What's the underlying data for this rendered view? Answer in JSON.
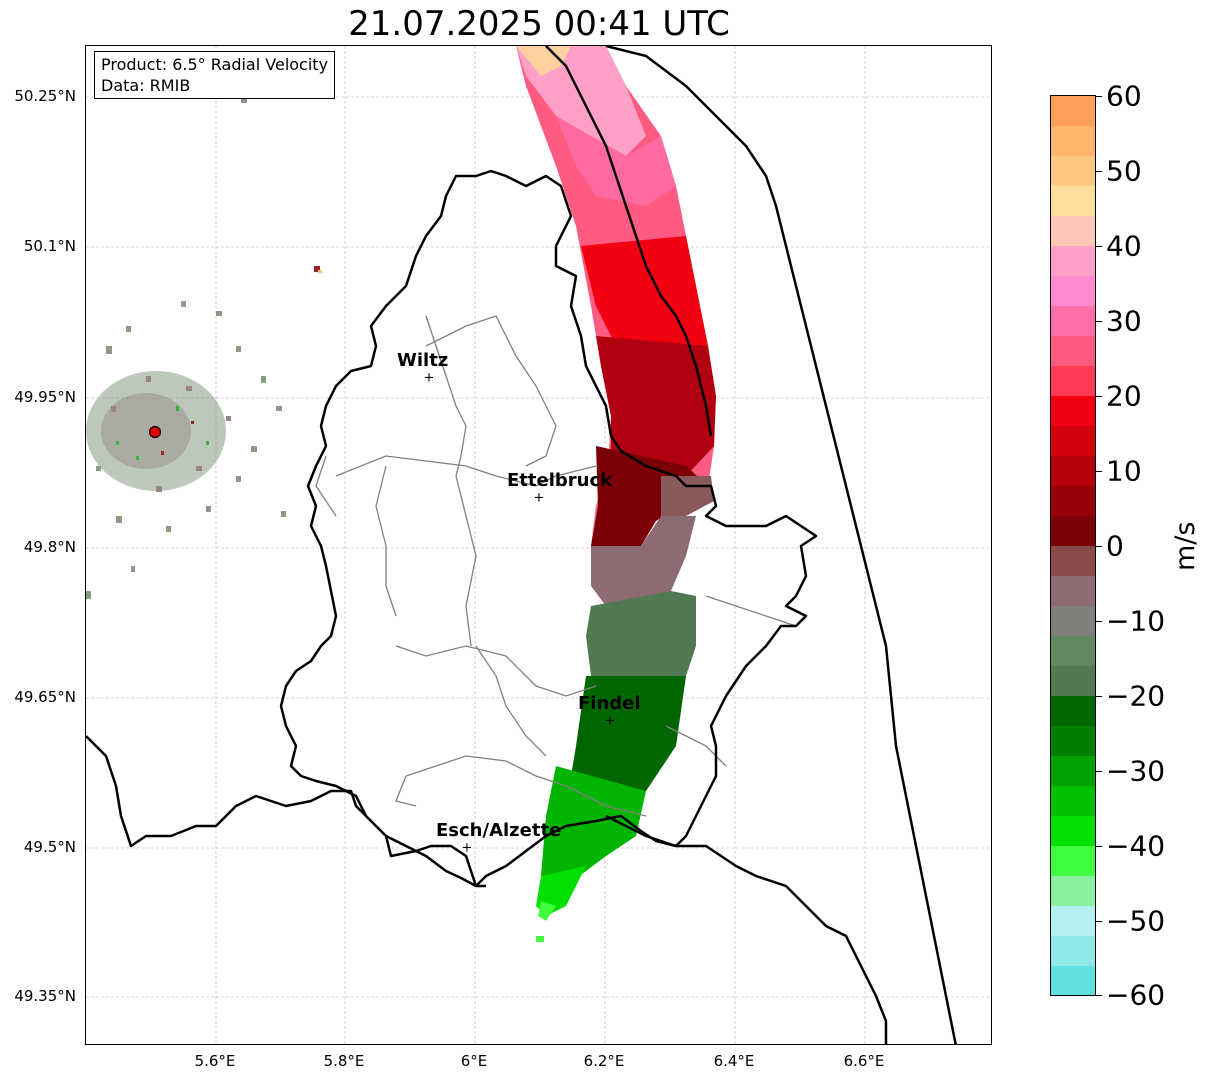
{
  "title": "21.07.2025 00:41 UTC",
  "info": {
    "product": "Product: 6.5° Radial Velocity",
    "data_source": "Data: RMIB"
  },
  "axes": {
    "lat_labels": [
      "50.25°N",
      "50.1°N",
      "49.95°N",
      "49.8°N",
      "49.65°N",
      "49.5°N",
      "49.35°N"
    ],
    "lon_labels": [
      "5.6°E",
      "5.8°E",
      "6°E",
      "6.2°E",
      "6.4°E",
      "6.6°E"
    ]
  },
  "cities": [
    {
      "name": "Wiltz"
    },
    {
      "name": "Ettelbruck"
    },
    {
      "name": "Findel"
    },
    {
      "name": "Esch/Alzette"
    }
  ],
  "colorbar": {
    "unit": "m/s",
    "tick_labels": [
      "60",
      "50",
      "40",
      "30",
      "20",
      "10",
      "0",
      "−10",
      "−20",
      "−30",
      "−40",
      "−50",
      "−60"
    ],
    "range": [
      -60,
      60
    ]
  }
}
